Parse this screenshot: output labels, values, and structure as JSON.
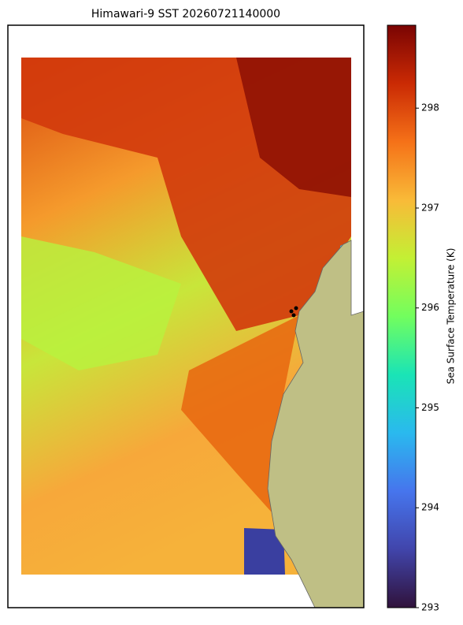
{
  "chart_data": {
    "type": "map",
    "title": "Himawari-9 SST 20260721140000",
    "colorbar_label": "Sea Surface Temperature (K)",
    "clim": [
      293,
      298.83
    ],
    "cticks": [
      293,
      294,
      295,
      296,
      297,
      298
    ]
  }
}
